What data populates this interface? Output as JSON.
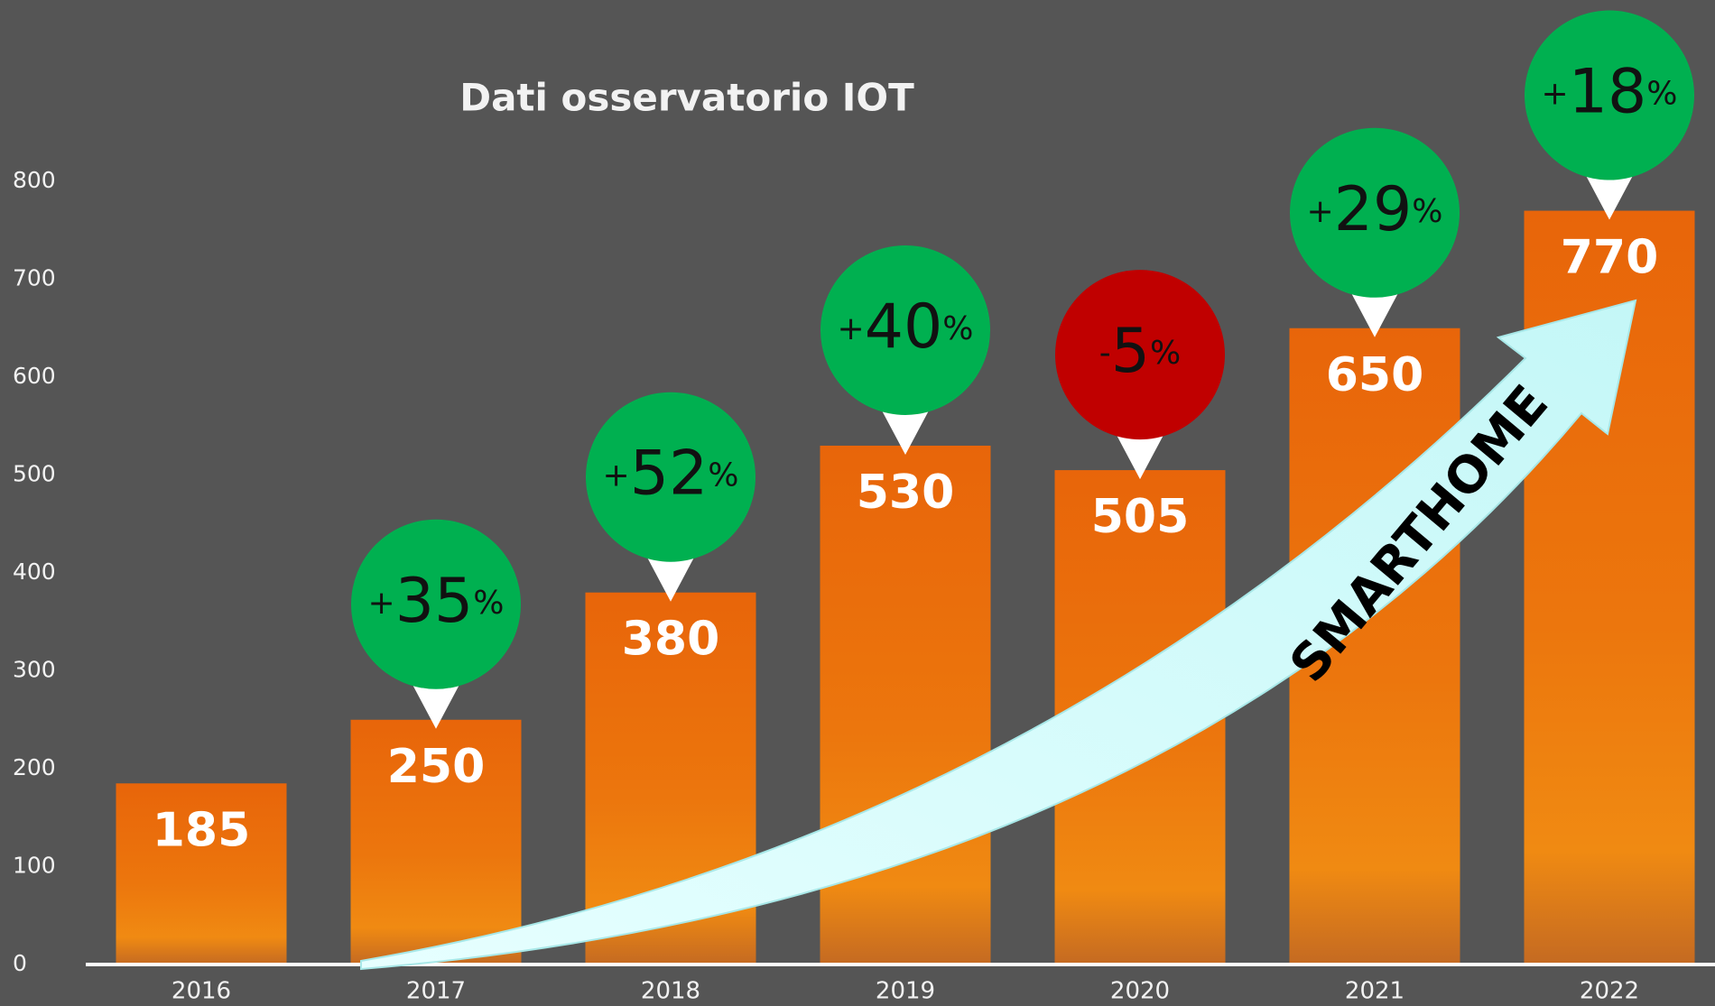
{
  "chart_data": {
    "type": "bar",
    "title": "Dati osservatorio IOT",
    "categories": [
      "2016",
      "2017",
      "2018",
      "2019",
      "2020",
      "2021",
      "2022"
    ],
    "values": [
      185,
      250,
      380,
      530,
      505,
      650,
      770
    ],
    "changes": [
      null,
      "+35%",
      "+52%",
      "+40%",
      "-5%",
      "+29%",
      "+18%"
    ],
    "color": "#e96a0b",
    "positive_color": "#00b050",
    "negative_color": "#c00000",
    "annotation": "SMARTHOME",
    "ylim": [
      0,
      800
    ],
    "yticks": [
      0,
      100,
      200,
      300,
      400,
      500,
      600,
      700,
      800
    ],
    "grid": false
  }
}
